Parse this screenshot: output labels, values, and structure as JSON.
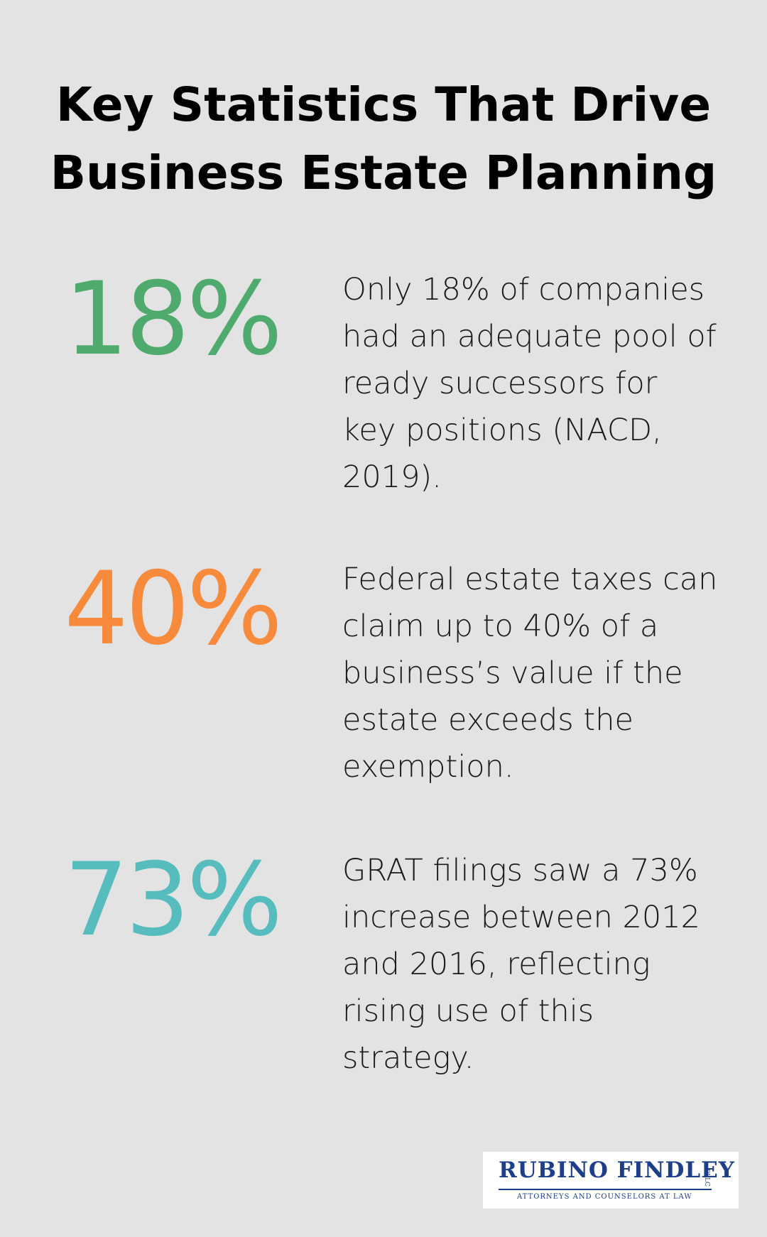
{
  "title": {
    "line1": "Key Statistics That Drive",
    "line2": "Business Estate Planning"
  },
  "stats": [
    {
      "value": "18%",
      "description": "Only 18% of companies had an adequate pool of ready successors for key positions (NACD, 2019).",
      "color": "#4faa6d"
    },
    {
      "value": "40%",
      "description": "Federal estate taxes can claim up to 40% of a business’s value if the estate exceeds the exemption.",
      "color": "#f88a3c"
    },
    {
      "value": "73%",
      "description": "GRAT filings saw a 73% increase between 2012 and 2016, reflecting rising use of this strategy.",
      "color": "#57bcbd"
    }
  ],
  "logo": {
    "name": "RUBINO FINDLEY",
    "suffix": "PLLC",
    "tagline": "ATTORNEYS AND COUNSELORS AT LAW",
    "color": "#1d3f8a"
  },
  "colors": {
    "background": "#e2e3e2"
  }
}
